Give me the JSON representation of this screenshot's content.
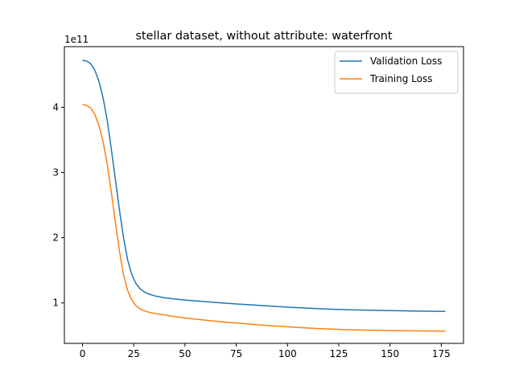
{
  "chart_data": {
    "type": "line",
    "title": "stellar dataset, without attribute: waterfront",
    "xlabel": "",
    "ylabel": "",
    "y_offset_label": "1e11",
    "y_scale": 100000000000,
    "xlim": [
      -8.85,
      185.85
    ],
    "ylim": [
      38000000000,
      493000000000
    ],
    "xticks": [
      0,
      25,
      50,
      75,
      100,
      125,
      150,
      175
    ],
    "yticks": [
      100000000000,
      200000000000,
      300000000000,
      400000000000
    ],
    "ytick_labels": [
      "1",
      "2",
      "3",
      "4"
    ],
    "grid": false,
    "legend_position": "top-right",
    "series": [
      {
        "name": "Validation Loss",
        "color": "#1f77b4",
        "x": [
          0,
          2,
          4,
          6,
          8,
          10,
          12,
          14,
          16,
          18,
          20,
          22,
          24,
          26,
          28,
          30,
          32,
          35,
          40,
          45,
          50,
          60,
          70,
          80,
          90,
          100,
          110,
          120,
          130,
          140,
          150,
          160,
          170,
          177
        ],
        "y": [
          472000000000,
          471000000000,
          467000000000,
          457000000000,
          440000000000,
          415000000000,
          381000000000,
          337000000000,
          290000000000,
          243000000000,
          200000000000,
          166000000000,
          144000000000,
          130000000000,
          122000000000,
          117000000000,
          114000000000,
          111000000000,
          108000000000,
          106000000000,
          104500000000,
          102000000000,
          99500000000,
          97500000000,
          95500000000,
          93500000000,
          92000000000,
          90500000000,
          89500000000,
          88800000000,
          88200000000,
          87700000000,
          87300000000,
          87000000000
        ]
      },
      {
        "name": "Training Loss",
        "color": "#ff7f0e",
        "x": [
          0,
          2,
          4,
          6,
          8,
          10,
          12,
          14,
          16,
          18,
          20,
          22,
          24,
          26,
          28,
          30,
          32,
          35,
          40,
          45,
          50,
          60,
          70,
          80,
          90,
          100,
          110,
          120,
          130,
          140,
          150,
          160,
          170,
          177
        ],
        "y": [
          404000000000,
          403000000000,
          399000000000,
          389000000000,
          372000000000,
          348000000000,
          314000000000,
          271000000000,
          224000000000,
          180000000000,
          143000000000,
          119000000000,
          105000000000,
          96000000000,
          91000000000,
          88000000000,
          86000000000,
          84000000000,
          81500000000,
          79000000000,
          77000000000,
          73500000000,
          70500000000,
          68000000000,
          65500000000,
          63500000000,
          61500000000,
          60000000000,
          59000000000,
          58200000000,
          57600000000,
          57200000000,
          56900000000,
          56700000000
        ]
      }
    ]
  }
}
